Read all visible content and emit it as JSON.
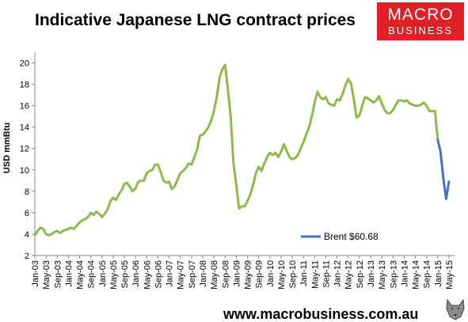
{
  "header": {
    "title": "Indicative Japanese LNG contract prices"
  },
  "logo": {
    "line1": "MACRO",
    "line2": "BUSINESS",
    "background": "#e01f26"
  },
  "footer": {
    "url": "www.macrobusiness.com.au",
    "mascot_icon": "wolf-icon"
  },
  "chart_data": {
    "type": "line",
    "title": "Indicative Japanese LNG contract prices",
    "xlabel": "",
    "ylabel": "USD mmBtu",
    "ylim": [
      2,
      21
    ],
    "yticks": [
      2,
      4,
      6,
      8,
      10,
      12,
      14,
      16,
      18,
      20
    ],
    "grid": false,
    "legend_position": "lower-right",
    "x_start": "Jan-03",
    "xtick_labels": [
      "Jan-03",
      "May-03",
      "Sep-03",
      "Jan-04",
      "May-04",
      "Sep-04",
      "Jan-05",
      "May-05",
      "Sep-05",
      "Jan-06",
      "May-06",
      "Sep-06",
      "Jan-07",
      "May-07",
      "Sep-07",
      "Jan-08",
      "May-08",
      "Sep-08",
      "Jan-09",
      "May-09",
      "Sep-09",
      "Jan-10",
      "May-10",
      "Sep-10",
      "Jan-11",
      "May-11",
      "Sep-11",
      "Jan-12",
      "May-12",
      "Sep-12",
      "Jan-13",
      "May-13",
      "Sep-13",
      "Jan-14",
      "May-14",
      "Sep-14",
      "Jan-15",
      "May-15"
    ],
    "series": [
      {
        "name": "",
        "color": "#8db94f",
        "start_month_index": 0,
        "values": [
          3.9,
          4.3,
          4.6,
          4.5,
          4.0,
          3.9,
          4.0,
          4.2,
          4.3,
          4.1,
          4.3,
          4.4,
          4.5,
          4.6,
          4.5,
          4.8,
          5.1,
          5.3,
          5.4,
          5.6,
          6.0,
          5.8,
          6.1,
          5.9,
          5.6,
          5.9,
          6.3,
          7.1,
          7.4,
          7.2,
          7.7,
          8.1,
          8.7,
          8.8,
          8.4,
          8.0,
          8.3,
          8.9,
          9.0,
          9.0,
          9.7,
          9.9,
          10.0,
          10.5,
          10.5,
          9.8,
          9.0,
          8.8,
          8.9,
          8.2,
          8.5,
          9.1,
          9.7,
          9.9,
          10.2,
          10.6,
          10.5,
          11.2,
          11.9,
          13.2,
          13.3,
          13.6,
          14.0,
          14.6,
          15.5,
          16.8,
          18.6,
          19.4,
          19.8,
          17.5,
          15.0,
          10.6,
          8.6,
          6.4,
          6.6,
          6.6,
          7.1,
          7.7,
          8.6,
          9.7,
          10.3,
          9.9,
          10.6,
          11.2,
          11.6,
          11.4,
          11.6,
          11.2,
          11.7,
          12.4,
          11.8,
          11.2,
          11.0,
          11.1,
          11.4,
          12.0,
          12.6,
          13.3,
          14.0,
          15.0,
          16.3,
          17.3,
          16.8,
          16.6,
          16.8,
          16.2,
          16.1,
          16.0,
          16.6,
          16.5,
          17.1,
          17.9,
          18.5,
          18.1,
          16.6,
          14.9,
          15.1,
          16.0,
          16.8,
          16.7,
          16.5,
          16.3,
          16.5,
          16.9,
          16.2,
          15.6,
          15.3,
          15.3,
          15.6,
          16.1,
          16.5,
          16.5,
          16.4,
          16.5,
          16.2,
          16.1,
          16.0,
          16.0,
          16.1,
          16.3,
          16.0,
          15.5,
          15.5,
          15.5,
          12.8
        ]
      },
      {
        "name": "Brent $60.68",
        "color": "#4472c4",
        "start_month_index": 144,
        "values": [
          12.8,
          11.7,
          9.2,
          7.3,
          8.9
        ]
      }
    ]
  }
}
